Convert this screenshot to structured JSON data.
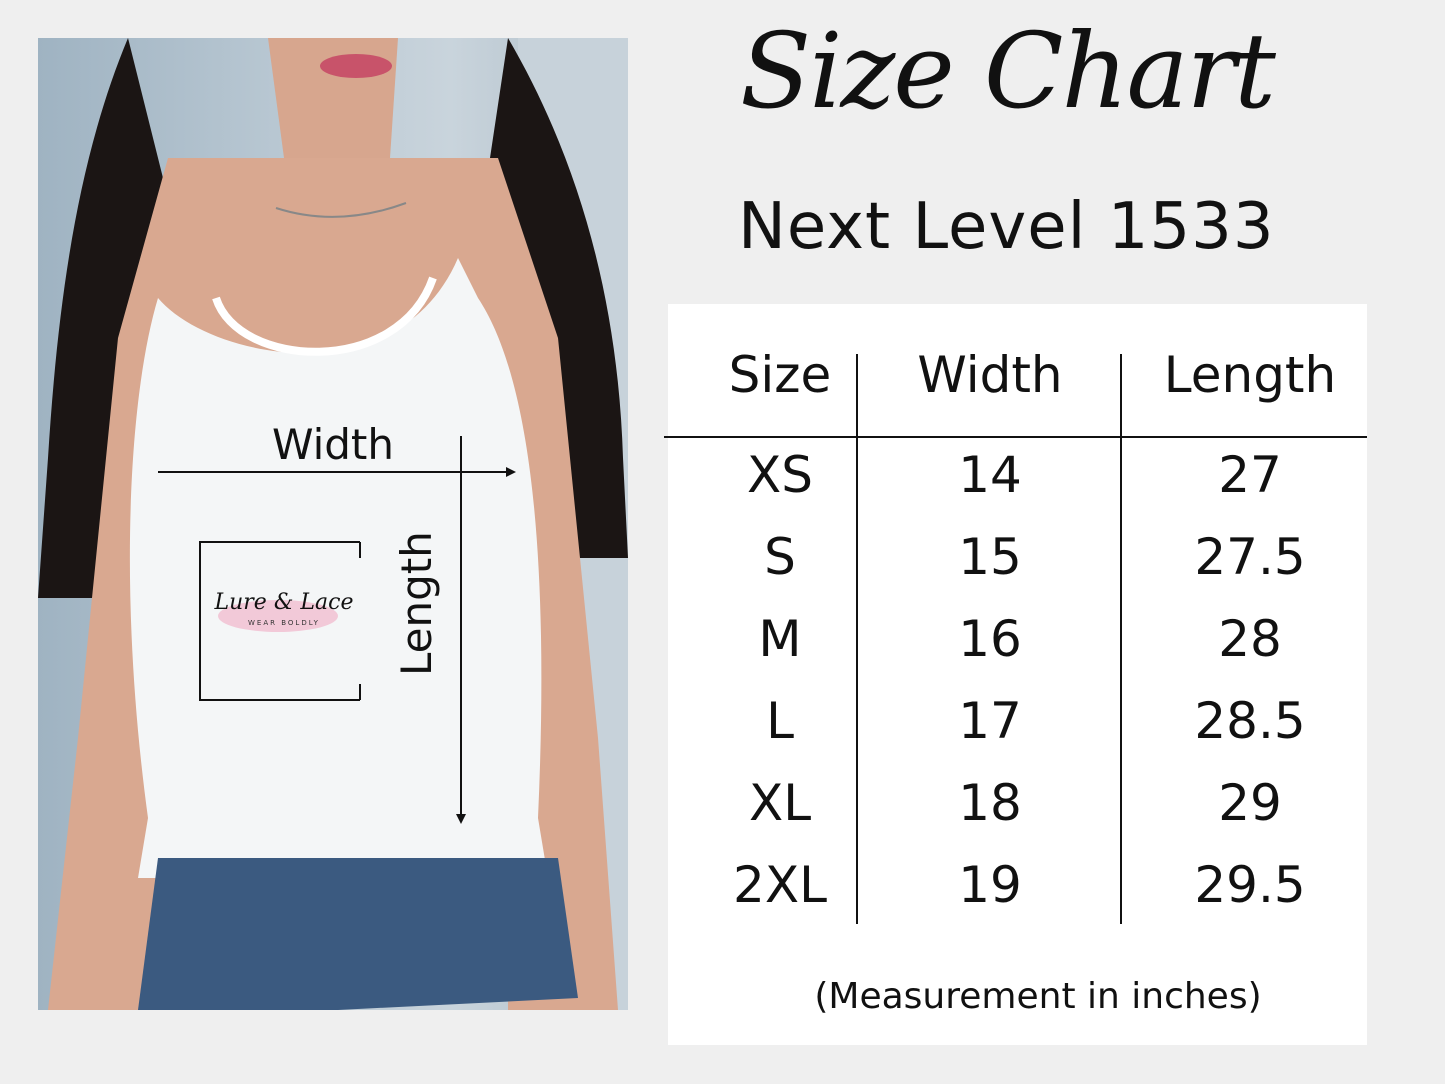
{
  "title": "Size Chart",
  "subtitle": "Next Level 1533",
  "photo": {
    "width_label": "Width",
    "length_label": "Length",
    "logo": {
      "name": "Lure & Lace",
      "tagline": "WEAR BOLDLY"
    }
  },
  "chart_data": {
    "type": "table",
    "columns": [
      "Size",
      "Width",
      "Length"
    ],
    "rows": [
      [
        "XS",
        "14",
        "27"
      ],
      [
        "S",
        "15",
        "27.5"
      ],
      [
        "M",
        "16",
        "28"
      ],
      [
        "L",
        "17",
        "28.5"
      ],
      [
        "XL",
        "18",
        "29"
      ],
      [
        "2XL",
        "19",
        "29.5"
      ]
    ]
  },
  "note": "(Measurement in inches)"
}
